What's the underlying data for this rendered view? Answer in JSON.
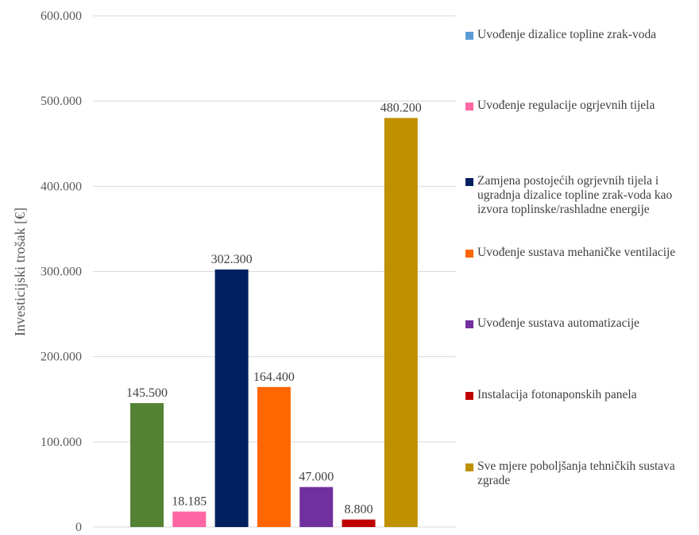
{
  "chart_data": {
    "type": "bar",
    "title": "",
    "xlabel": "",
    "ylabel": "Investicijski trošak [€]",
    "ylim": [
      0,
      600000
    ],
    "yticks": [
      0,
      100000,
      200000,
      300000,
      400000,
      500000,
      600000
    ],
    "ytick_labels": [
      "0",
      "100.000",
      "200.000",
      "300.000",
      "400.000",
      "500.000",
      "600.000"
    ],
    "grid": true,
    "legend_position": "right",
    "series": [
      {
        "name": "Uvođenje dizalice topline zrak-voda",
        "value": 145500,
        "label": "145.500",
        "color": "#548235"
      },
      {
        "name": "Uvođenje regulacije ogrjevnih tijela",
        "value": 18185,
        "label": "18.185",
        "color": "#ff66a3"
      },
      {
        "name": "Zamjena postojećih ogrjevnih tijela i ugradnja dizalice topline zrak-voda kao izvora toplinske/rashladne energije",
        "value": 302300,
        "label": "302.300",
        "color": "#002060"
      },
      {
        "name": "Uvođenje sustava mehaničke ventilacije",
        "value": 164400,
        "label": "164.400",
        "color": "#ff6600"
      },
      {
        "name": "Uvođenje sustava automatizacije",
        "value": 47000,
        "label": "47.000",
        "color": "#7030a0"
      },
      {
        "name": "Instalacija fotonaponskih panela",
        "value": 8800,
        "label": "8.800",
        "color": "#c00000"
      },
      {
        "name": "Sve mjere poboljšanja tehničkih sustava zgrade",
        "value": 480200,
        "label": "480.200",
        "color": "#bf9000"
      }
    ],
    "legend_swatch_colors": [
      "#5b9bd5",
      "#ff66a3",
      "#002060",
      "#ff6600",
      "#7030a0",
      "#c00000",
      "#bf9000"
    ]
  }
}
